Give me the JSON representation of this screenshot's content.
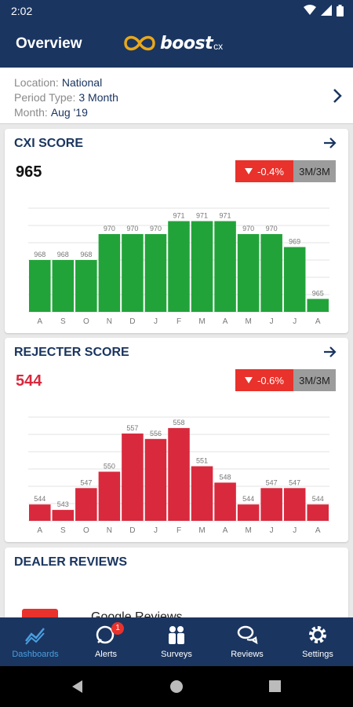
{
  "status": {
    "time": "2:02"
  },
  "header": {
    "title": "Overview",
    "logo_text": "boost",
    "logo_suffix": "cx"
  },
  "filters": {
    "location_label": "Location:",
    "location_value": "National",
    "period_label": "Period Type:",
    "period_value": "3 Month",
    "month_label": "Month:",
    "month_value": "Aug '19"
  },
  "cxi": {
    "title": "CXI SCORE",
    "score": "965",
    "delta": "-0.4%",
    "period": "3M/3M",
    "color": "#22a33a",
    "chart_data": {
      "type": "bar",
      "categories": [
        "A",
        "S",
        "O",
        "N",
        "D",
        "J",
        "F",
        "M",
        "A",
        "M",
        "J",
        "J",
        "A"
      ],
      "values": [
        968,
        968,
        968,
        970,
        970,
        970,
        971,
        971,
        971,
        970,
        970,
        969,
        965
      ],
      "ylim": [
        964,
        972
      ]
    }
  },
  "rejecter": {
    "title": "REJECTER SCORE",
    "score": "544",
    "delta": "-0.6%",
    "period": "3M/3M",
    "color": "#d9293d",
    "chart_data": {
      "type": "bar",
      "categories": [
        "A",
        "S",
        "O",
        "N",
        "D",
        "J",
        "F",
        "M",
        "A",
        "M",
        "J",
        "J",
        "A"
      ],
      "values": [
        544,
        543,
        547,
        550,
        557,
        556,
        558,
        551,
        548,
        544,
        547,
        547,
        544
      ],
      "ylim": [
        541,
        560
      ]
    }
  },
  "reviews": {
    "title": "DEALER REVIEWS",
    "item_label": "Google Reviews"
  },
  "nav": {
    "items": [
      {
        "label": "Dashboards"
      },
      {
        "label": "Alerts",
        "badge": "1"
      },
      {
        "label": "Surveys"
      },
      {
        "label": "Reviews"
      },
      {
        "label": "Settings"
      }
    ]
  },
  "colors": {
    "primary": "#1a3560",
    "accent": "#4a9fe0",
    "negative": "#e8322b"
  }
}
